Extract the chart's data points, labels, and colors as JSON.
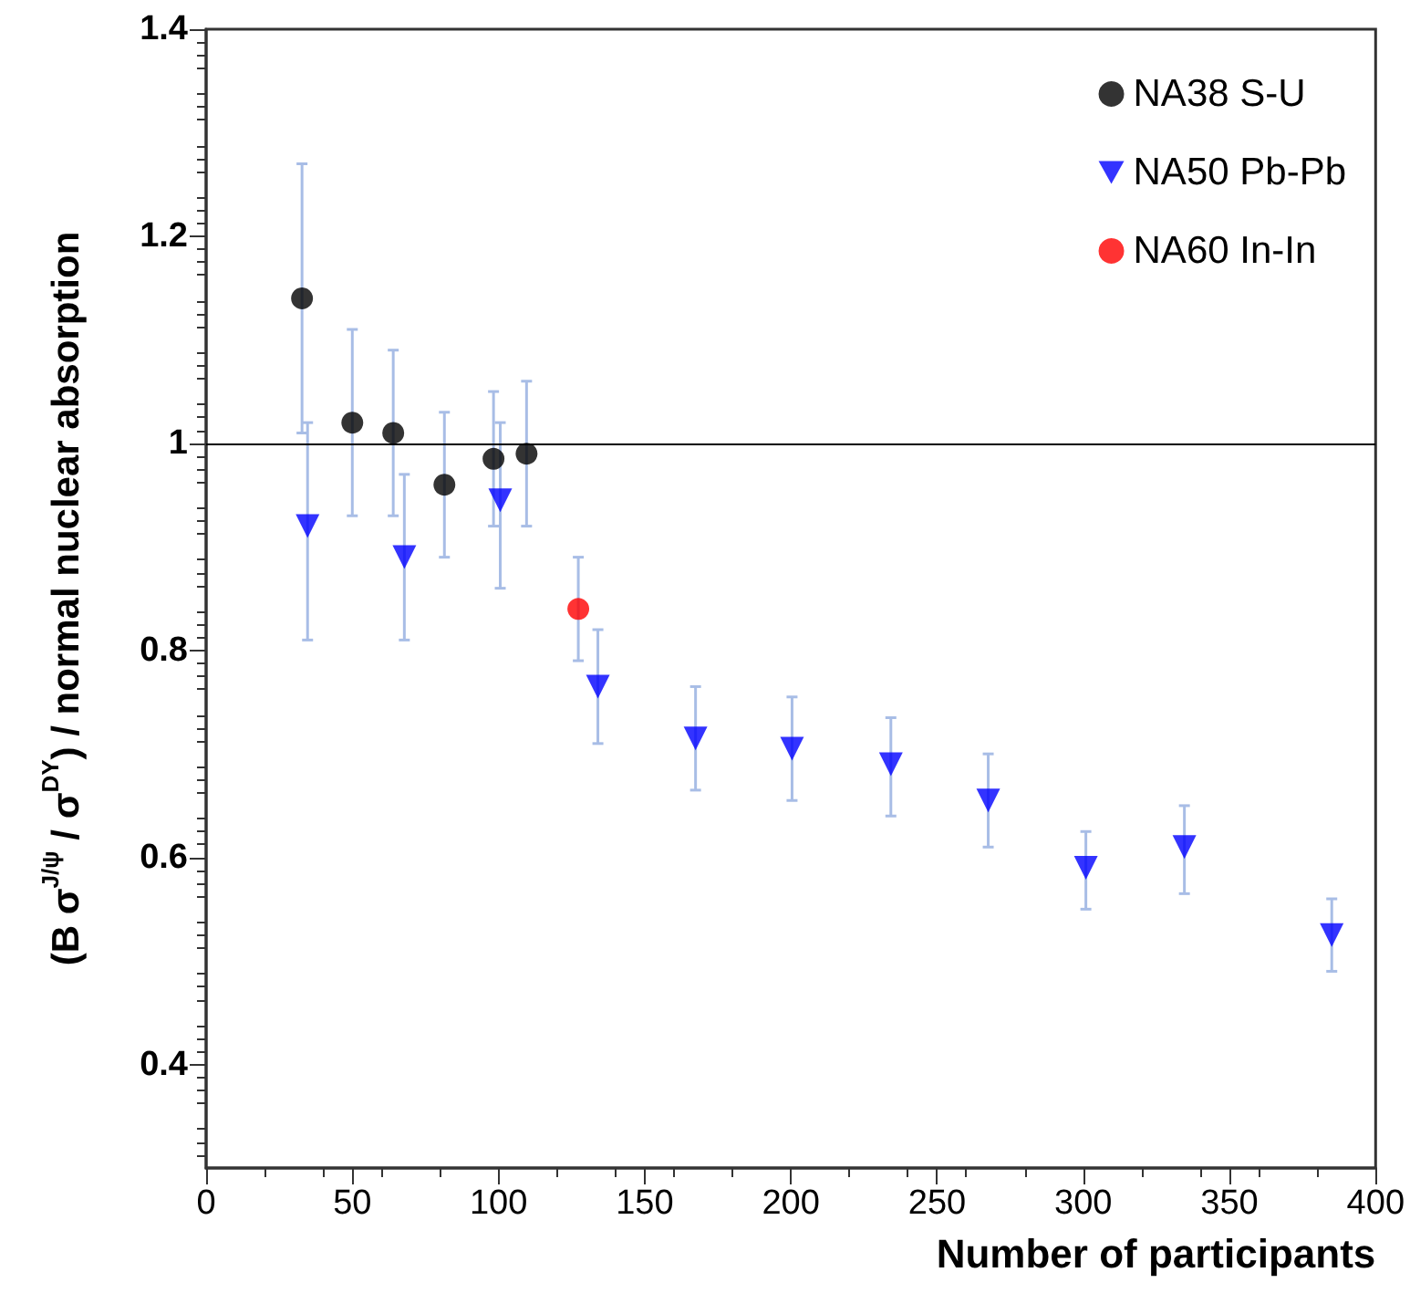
{
  "chart_data": {
    "type": "scatter",
    "xlabel": "Number of participants",
    "ylabel": "(B σ$^{J/ψ}$ / σ$^{DY}$) / normal nuclear absorption",
    "xlim": [
      0,
      400
    ],
    "xticks": [
      0,
      50,
      100,
      150,
      200,
      250,
      300,
      350,
      400
    ],
    "ylim": [
      0.3,
      1.4
    ],
    "yticks": [
      0.4,
      0.6,
      0.8,
      1,
      1.2,
      1.4
    ],
    "grid": false,
    "legend": "top right",
    "ref_lines": [
      {
        "axis": "y",
        "value": 1,
        "color": "#000000",
        "line_style": "solid"
      }
    ],
    "series": [
      {
        "name": "NA38 S-U",
        "color": "#000000",
        "marker": "circle",
        "x": [
          32.8,
          50,
          64,
          81.5,
          98.3,
          109.6
        ],
        "values": [
          1.14,
          1.02,
          1.01,
          0.96,
          0.985,
          0.99
        ],
        "errors": [
          [
            1.01,
            1.27
          ],
          [
            0.93,
            1.11
          ],
          [
            0.93,
            1.09
          ],
          [
            0.89,
            1.03
          ],
          [
            0.92,
            1.05
          ],
          [
            0.92,
            1.06
          ]
        ]
      },
      {
        "name": "NA50 Pb-Pb",
        "color": "#0000ff",
        "marker": "triangle",
        "x": [
          34.7,
          67.8,
          100.6,
          134,
          167.4,
          200.4,
          234.2,
          267.5,
          300.9,
          334.6,
          385
        ],
        "values": [
          0.92,
          0.89,
          0.945,
          0.765,
          0.715,
          0.705,
          0.69,
          0.655,
          0.59,
          0.61,
          0.525
        ],
        "errors": [
          [
            0.81,
            1.02
          ],
          [
            0.81,
            0.97
          ],
          [
            0.86,
            1.02
          ],
          [
            0.71,
            0.82
          ],
          [
            0.665,
            0.765
          ],
          [
            0.655,
            0.755
          ],
          [
            0.64,
            0.735
          ],
          [
            0.61,
            0.7
          ],
          [
            0.55,
            0.625
          ],
          [
            0.565,
            0.65
          ],
          [
            0.49,
            0.56
          ]
        ]
      },
      {
        "name": "NA60 In-In",
        "color": "#ff0000",
        "marker": "circle",
        "x": [
          127.3
        ],
        "values": [
          0.84
        ],
        "errors": [
          [
            0.79,
            0.89
          ]
        ]
      }
    ]
  }
}
